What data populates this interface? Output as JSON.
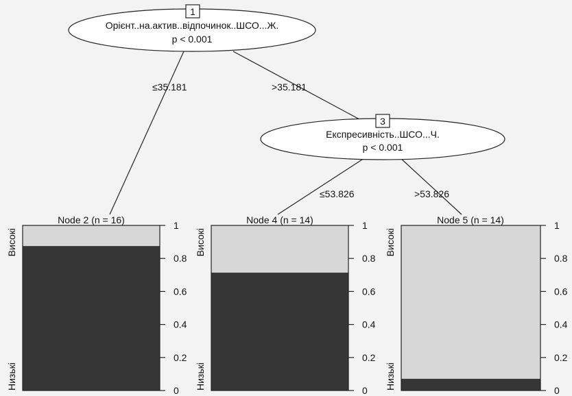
{
  "inner_nodes": [
    {
      "id": "1",
      "variable": "Орієнт..на.актив..відпочинок..ШСО...Ж.",
      "p_label": "p < 0.001"
    },
    {
      "id": "3",
      "variable": "Експресивність..ШСО...Ч.",
      "p_label": "p < 0.001"
    }
  ],
  "edges": [
    {
      "label": "≤35.181"
    },
    {
      "label": ">35.181"
    },
    {
      "label": "≤53.826"
    },
    {
      "label": ">53.826"
    }
  ],
  "terminal_nodes": [
    {
      "title": "Node 2 (n = 16)",
      "high_fraction": 0.125
    },
    {
      "title": "Node 4 (n = 14)",
      "high_fraction": 0.286
    },
    {
      "title": "Node 5 (n = 14)",
      "high_fraction": 0.929
    }
  ],
  "classes": {
    "high": "Високі",
    "low": "Низькі"
  },
  "y_ticks": [
    "0",
    "0.2",
    "0.4",
    "0.6",
    "0.8",
    "1"
  ],
  "colors": {
    "high": "#d7d7d7",
    "low": "#363636",
    "background": "#f3f3f3"
  }
}
